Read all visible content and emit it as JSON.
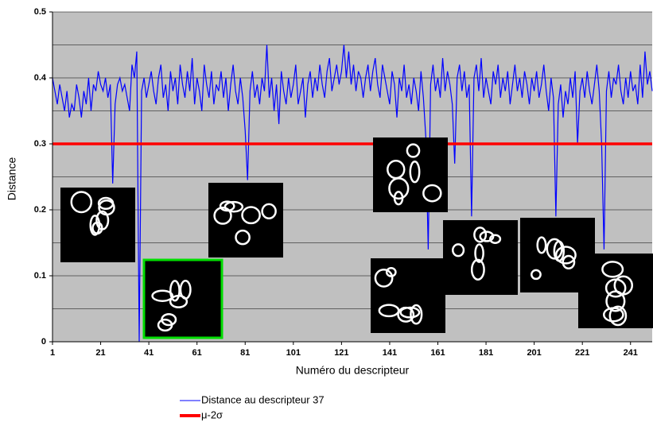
{
  "chart_data": {
    "type": "line",
    "x_label": "Numéro du descripteur",
    "y_label": "Distance",
    "x": [
      1,
      2,
      3,
      4,
      5,
      6,
      7,
      8,
      9,
      10,
      11,
      12,
      13,
      14,
      15,
      16,
      17,
      18,
      19,
      20,
      21,
      22,
      23,
      24,
      25,
      26,
      27,
      28,
      29,
      30,
      31,
      32,
      33,
      34,
      35,
      36,
      37,
      38,
      39,
      40,
      41,
      42,
      43,
      44,
      45,
      46,
      47,
      48,
      49,
      50,
      51,
      52,
      53,
      54,
      55,
      56,
      57,
      58,
      59,
      60,
      61,
      62,
      63,
      64,
      65,
      66,
      67,
      68,
      69,
      70,
      71,
      72,
      73,
      74,
      75,
      76,
      77,
      78,
      79,
      80,
      81,
      82,
      83,
      84,
      85,
      86,
      87,
      88,
      89,
      90,
      91,
      92,
      93,
      94,
      95,
      96,
      97,
      98,
      99,
      100,
      101,
      102,
      103,
      104,
      105,
      106,
      107,
      108,
      109,
      110,
      111,
      112,
      113,
      114,
      115,
      116,
      117,
      118,
      119,
      120,
      121,
      122,
      123,
      124,
      125,
      126,
      127,
      128,
      129,
      130,
      131,
      132,
      133,
      134,
      135,
      136,
      137,
      138,
      139,
      140,
      141,
      142,
      143,
      144,
      145,
      146,
      147,
      148,
      149,
      150,
      151,
      152,
      153,
      154,
      155,
      156,
      157,
      158,
      159,
      160,
      161,
      162,
      163,
      164,
      165,
      166,
      167,
      168,
      169,
      170,
      171,
      172,
      173,
      174,
      175,
      176,
      177,
      178,
      179,
      180,
      181,
      182,
      183,
      184,
      185,
      186,
      187,
      188,
      189,
      190,
      191,
      192,
      193,
      194,
      195,
      196,
      197,
      198,
      199,
      200,
      201,
      202,
      203,
      204,
      205,
      206,
      207,
      208,
      209,
      210,
      211,
      212,
      213,
      214,
      215,
      216,
      217,
      218,
      219,
      220,
      221,
      222,
      223,
      224,
      225,
      226,
      227,
      228,
      229,
      230,
      231,
      232,
      233,
      234,
      235,
      236,
      237,
      238,
      239,
      240,
      241,
      242,
      243,
      244,
      245,
      246,
      247,
      248,
      249,
      250
    ],
    "series": [
      {
        "name": "Distance au descripteur 37",
        "color": "#0000ff",
        "values": [
          0.4,
          0.38,
          0.36,
          0.39,
          0.37,
          0.35,
          0.38,
          0.34,
          0.36,
          0.35,
          0.39,
          0.37,
          0.34,
          0.38,
          0.36,
          0.4,
          0.35,
          0.39,
          0.38,
          0.41,
          0.39,
          0.38,
          0.4,
          0.37,
          0.39,
          0.24,
          0.36,
          0.39,
          0.4,
          0.38,
          0.39,
          0.37,
          0.35,
          0.42,
          0.4,
          0.44,
          0.0,
          0.38,
          0.4,
          0.37,
          0.39,
          0.41,
          0.38,
          0.36,
          0.4,
          0.42,
          0.37,
          0.39,
          0.35,
          0.41,
          0.38,
          0.4,
          0.36,
          0.42,
          0.39,
          0.37,
          0.41,
          0.38,
          0.43,
          0.36,
          0.4,
          0.38,
          0.35,
          0.42,
          0.39,
          0.37,
          0.41,
          0.36,
          0.39,
          0.38,
          0.41,
          0.37,
          0.4,
          0.35,
          0.39,
          0.42,
          0.38,
          0.36,
          0.4,
          0.37,
          0.32,
          0.245,
          0.38,
          0.41,
          0.37,
          0.39,
          0.36,
          0.4,
          0.38,
          0.45,
          0.37,
          0.4,
          0.35,
          0.39,
          0.33,
          0.41,
          0.38,
          0.36,
          0.4,
          0.37,
          0.39,
          0.42,
          0.36,
          0.38,
          0.4,
          0.34,
          0.39,
          0.41,
          0.37,
          0.4,
          0.38,
          0.42,
          0.39,
          0.37,
          0.41,
          0.43,
          0.38,
          0.4,
          0.42,
          0.39,
          0.41,
          0.45,
          0.4,
          0.44,
          0.39,
          0.42,
          0.38,
          0.41,
          0.4,
          0.37,
          0.4,
          0.42,
          0.38,
          0.41,
          0.43,
          0.39,
          0.37,
          0.42,
          0.4,
          0.38,
          0.36,
          0.41,
          0.39,
          0.34,
          0.4,
          0.38,
          0.42,
          0.37,
          0.39,
          0.36,
          0.4,
          0.38,
          0.35,
          0.41,
          0.37,
          0.31,
          0.14,
          0.39,
          0.42,
          0.38,
          0.4,
          0.37,
          0.43,
          0.38,
          0.41,
          0.39,
          0.36,
          0.27,
          0.4,
          0.42,
          0.38,
          0.41,
          0.37,
          0.39,
          0.19,
          0.4,
          0.42,
          0.38,
          0.43,
          0.37,
          0.4,
          0.38,
          0.36,
          0.41,
          0.39,
          0.42,
          0.37,
          0.4,
          0.38,
          0.41,
          0.36,
          0.39,
          0.42,
          0.38,
          0.4,
          0.37,
          0.41,
          0.39,
          0.36,
          0.4,
          0.38,
          0.41,
          0.37,
          0.39,
          0.42,
          0.38,
          0.35,
          0.4,
          0.37,
          0.19,
          0.36,
          0.39,
          0.34,
          0.38,
          0.36,
          0.4,
          0.37,
          0.41,
          0.3,
          0.38,
          0.4,
          0.37,
          0.41,
          0.38,
          0.36,
          0.39,
          0.42,
          0.38,
          0.3,
          0.14,
          0.38,
          0.41,
          0.37,
          0.4,
          0.39,
          0.42,
          0.38,
          0.36,
          0.4,
          0.37,
          0.41,
          0.38,
          0.39,
          0.36,
          0.42,
          0.37,
          0.44,
          0.39,
          0.41,
          0.38
        ]
      }
    ],
    "threshold": {
      "name": "μ-2σ",
      "value": 0.3,
      "color": "#ff0000"
    },
    "xlim": [
      1,
      250
    ],
    "xticks": [
      1,
      21,
      41,
      61,
      81,
      101,
      121,
      141,
      161,
      181,
      201,
      221,
      241
    ],
    "ylim": [
      0,
      0.5
    ],
    "yticks": [
      0,
      0.1,
      0.2,
      0.3,
      0.4,
      0.5
    ],
    "ygrid": [
      0.05,
      0.1,
      0.15,
      0.2,
      0.25,
      0.3,
      0.35,
      0.4,
      0.45,
      0.5
    ],
    "grid": true
  }
}
